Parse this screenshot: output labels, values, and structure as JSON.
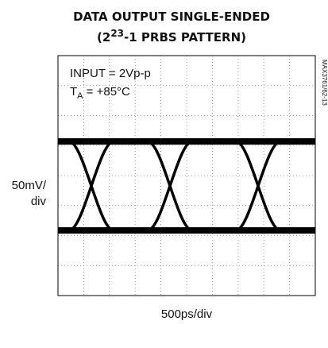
{
  "chart_data": {
    "type": "eye-diagram",
    "title": "DATA OUTPUT SINGLE-ENDED",
    "subtitle": [
      "(2",
      "23",
      "-1 PRBS PATTERN)"
    ],
    "annotations": {
      "input": "INPUT = 2Vp-p",
      "temp": [
        "T",
        "A",
        " = +85°C"
      ],
      "code": "MAX3761/62-13"
    },
    "xlabel": "500ps/div",
    "ylabel": [
      "50mV/",
      "div"
    ],
    "grid": true,
    "color": "#000000"
  }
}
